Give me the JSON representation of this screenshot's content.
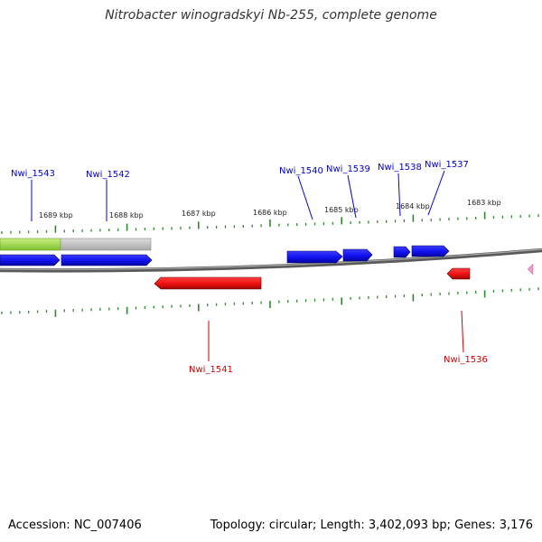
{
  "title": "Nitrobacter winogradskyi Nb-255, complete genome",
  "footer": {
    "accession": "Accession: NC_007406",
    "topology": "Topology: circular; Length: 3,402,093 bp; Genes: 3,176"
  },
  "colors": {
    "forward_gene": "#1414ee",
    "reverse_gene": "#ee1414",
    "gene_label_forward": "#0000cc",
    "gene_label_reverse": "#cc0000",
    "backbone": "#7a7a7a",
    "ticks": "#2a8a2a",
    "feature_green": "#99dd44",
    "feature_gray": "#bbbbbb",
    "feature_pink": "#ee99cc"
  },
  "scale_labels": [
    "1689 kbp",
    "1688 kbp",
    "1687 kbp",
    "1686 kbp",
    "1685 kbp",
    "1684 kbp",
    "1683 kbp"
  ],
  "genes_forward": [
    "Nwi_1543",
    "Nwi_1542",
    "Nwi_1540",
    "Nwi_1539",
    "Nwi_1538",
    "Nwi_1537"
  ],
  "genes_reverse": [
    "Nwi_1541",
    "Nwi_1536"
  ]
}
